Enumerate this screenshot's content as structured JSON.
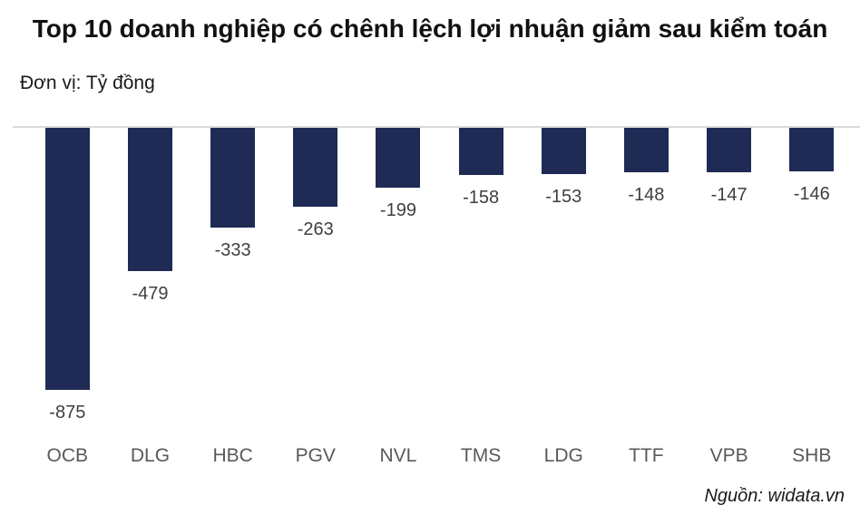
{
  "header": {
    "title": "Top 10 doanh nghiệp có chênh lệch lợi nhuận giảm sau kiểm toán",
    "unit_label": "Đơn vị: Tỷ đồng"
  },
  "footer": {
    "source_label": "Nguồn: widata.vn"
  },
  "colors": {
    "bar": "#1f2b55",
    "baseline": "#d9d9d9",
    "value_label": "#3f3f3f",
    "category_label": "#595959",
    "title": "#111111"
  },
  "chart_data": {
    "type": "bar",
    "orientation": "vertical-negative",
    "title": "Top 10 doanh nghiệp có chênh lệch lợi nhuận giảm sau kiểm toán",
    "subtitle": "Đơn vị: Tỷ đồng",
    "source": "Nguồn: widata.vn",
    "categories": [
      "OCB",
      "DLG",
      "HBC",
      "PGV",
      "NVL",
      "TMS",
      "LDG",
      "TTF",
      "VPB",
      "SHB"
    ],
    "values": [
      -875,
      -479,
      -333,
      -263,
      -199,
      -158,
      -153,
      -148,
      -147,
      -146
    ],
    "value_labels": [
      "-875",
      "-479",
      "-333",
      "-263",
      "-199",
      "-158",
      "-153",
      "-148",
      "-147",
      "-146"
    ],
    "xlabel": "",
    "ylabel": "Tỷ đồng",
    "ylim": [
      -875,
      0
    ],
    "grid": "baseline-only",
    "legend": "none"
  }
}
